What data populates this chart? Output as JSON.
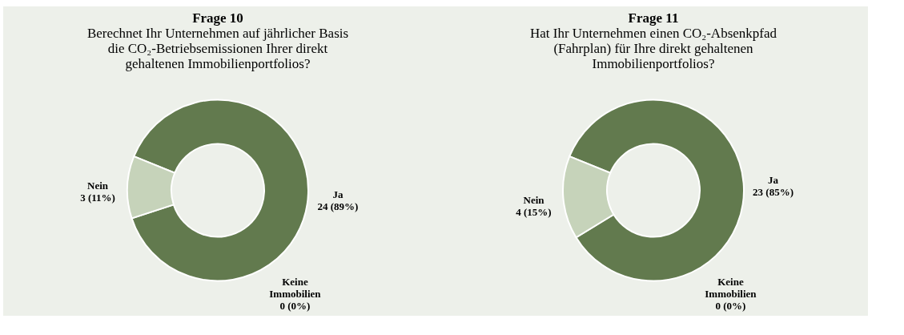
{
  "chart_data": [
    {
      "type": "donut",
      "title": "Frage 10",
      "subtitle": "Berechnet Ihr Unternehmen auf jährlicher Basis die CO₂-Betriebsemissionen Ihrer direkt gehaltenen Immobilienportfolios?",
      "categories": [
        "Ja",
        "Nein",
        "Keine Immobilien"
      ],
      "values": [
        24,
        3,
        0
      ],
      "value_labels": [
        "24 (89%)",
        "3 (11%)",
        "0 (0%)"
      ],
      "colors": [
        "#627a4e",
        "#c6d3ba",
        "#9aab88"
      ],
      "legend": false
    },
    {
      "type": "donut",
      "title": "Frage 11",
      "subtitle": "Hat Ihr Unternehmen einen CO₂-Absenkpfad (Fahrplan) für Ihre direkt gehaltenen Immobilienportfolios?",
      "categories": [
        "Ja",
        "Nein",
        "Keine Immobilien"
      ],
      "values": [
        23,
        4,
        0
      ],
      "value_labels": [
        "23 (85%)",
        "4 (15%)",
        "0 (0%)"
      ],
      "colors": [
        "#627a4e",
        "#c6d3ba",
        "#9aab88"
      ],
      "legend": false
    }
  ]
}
